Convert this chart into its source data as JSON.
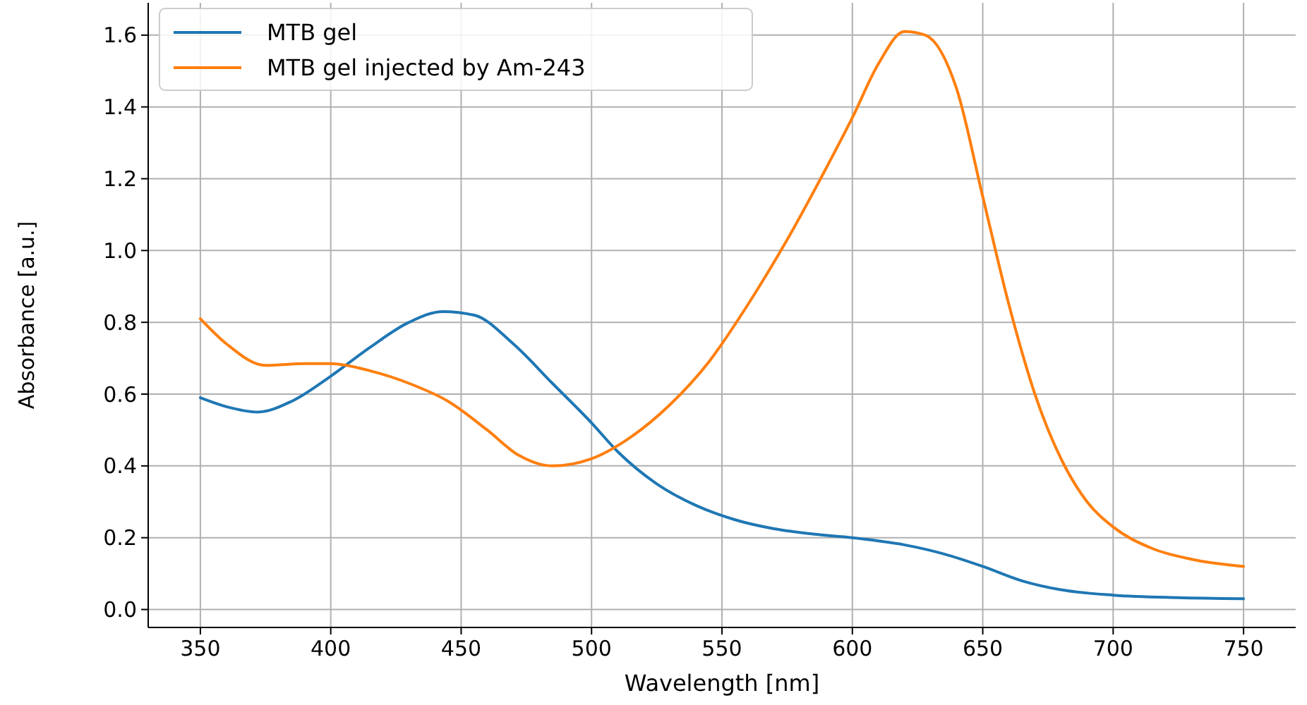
{
  "chart_data": {
    "type": "line",
    "xlabel": "Wavelength [nm]",
    "ylabel": "Absorbance [a.u.]",
    "xlim": [
      330,
      770
    ],
    "ylim": [
      -0.05,
      1.69
    ],
    "xticks": [
      350,
      400,
      450,
      500,
      550,
      600,
      650,
      700,
      750
    ],
    "yticks": [
      {
        "value": 0,
        "label": "0.0"
      },
      0.2,
      0.4,
      0.6,
      0.8,
      {
        "value": 1,
        "label": "1.0"
      },
      1.2,
      1.4,
      1.6
    ],
    "grid": true,
    "legend": "top left",
    "line_style": "solid",
    "marker": "none",
    "series": [
      {
        "name": "MTB gel",
        "color": "#1f77b4",
        "x": [
          350,
          360,
          372,
          385,
          400,
          415,
          430,
          443,
          455,
          470,
          485,
          500,
          510,
          525,
          540,
          555,
          570,
          585,
          600,
          620,
          635,
          650,
          665,
          680,
          700,
          725,
          750
        ],
        "values": [
          0.59,
          0.565,
          0.55,
          0.58,
          0.65,
          0.73,
          0.8,
          0.83,
          0.82,
          0.74,
          0.63,
          0.52,
          0.44,
          0.35,
          0.29,
          0.25,
          0.225,
          0.21,
          0.2,
          0.18,
          0.155,
          0.12,
          0.08,
          0.055,
          0.04,
          0.033,
          0.03
        ]
      },
      {
        "name": "MTB gel injected by Am-243",
        "color": "#ff7f0e",
        "x": [
          350,
          360,
          375,
          390,
          400,
          415,
          430,
          445,
          460,
          472,
          485,
          500,
          515,
          530,
          545,
          560,
          575,
          590,
          600,
          610,
          620,
          628,
          640,
          650,
          660,
          670,
          680,
          690,
          700,
          715,
          730,
          750
        ],
        "values": [
          0.81,
          0.74,
          0.68,
          0.685,
          0.685,
          0.665,
          0.63,
          0.58,
          0.5,
          0.43,
          0.4,
          0.42,
          0.48,
          0.57,
          0.69,
          0.85,
          1.03,
          1.23,
          1.37,
          1.52,
          1.61,
          1.6,
          1.45,
          1.15,
          0.85,
          0.6,
          0.42,
          0.3,
          0.23,
          0.17,
          0.14,
          0.12
        ]
      }
    ]
  }
}
